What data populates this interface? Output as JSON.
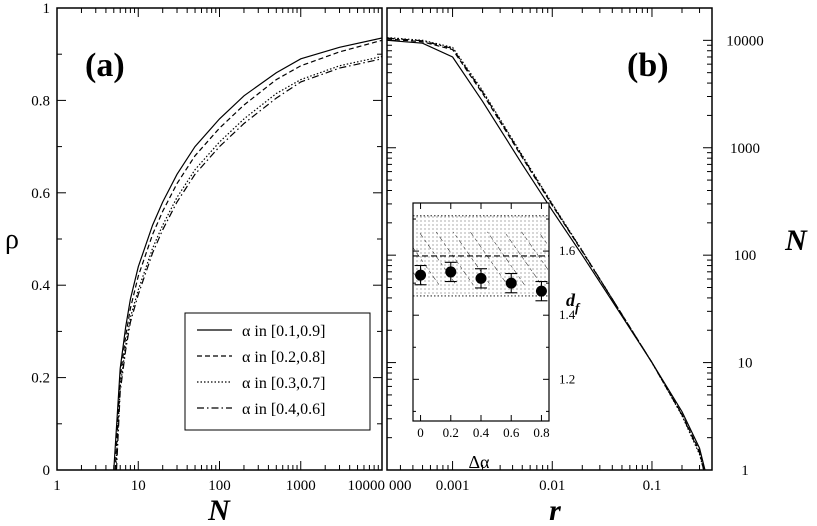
{
  "chart_data": [
    {
      "panel_label": "(a)",
      "type": "line",
      "xlabel": "N",
      "ylabel": "ρ",
      "xscale": "log",
      "xlim": [
        1,
        10000
      ],
      "ylim": [
        0,
        1
      ],
      "x_ticks": [
        "1",
        "10",
        "100",
        "1000",
        "10000"
      ],
      "y_ticks": [
        "0",
        "0.2",
        "0.4",
        "0.6",
        "0.8",
        "1"
      ],
      "grid": false,
      "legend_position": "bottom-right",
      "series": [
        {
          "name": "α in [0.1,0.9]",
          "style": "solid",
          "x": [
            5,
            6,
            7,
            8,
            10,
            15,
            20,
            30,
            50,
            100,
            200,
            500,
            1000,
            3000,
            10000
          ],
          "y": [
            0,
            0.22,
            0.31,
            0.37,
            0.44,
            0.53,
            0.58,
            0.64,
            0.7,
            0.76,
            0.81,
            0.86,
            0.89,
            0.915,
            0.935
          ]
        },
        {
          "name": "α in [0.2,0.8]",
          "style": "dashed",
          "x": [
            5.2,
            6,
            7,
            8,
            10,
            15,
            20,
            30,
            50,
            100,
            200,
            500,
            1000,
            3000,
            10000
          ],
          "y": [
            0,
            0.2,
            0.29,
            0.35,
            0.42,
            0.51,
            0.56,
            0.62,
            0.68,
            0.74,
            0.79,
            0.845,
            0.875,
            0.905,
            0.93
          ]
        },
        {
          "name": "α in [0.3,0.7]",
          "style": "dotted",
          "x": [
            5.3,
            6,
            7,
            8,
            10,
            15,
            20,
            30,
            50,
            100,
            200,
            500,
            1000,
            3000,
            10000
          ],
          "y": [
            0,
            0.18,
            0.27,
            0.33,
            0.39,
            0.48,
            0.53,
            0.59,
            0.65,
            0.71,
            0.76,
            0.815,
            0.845,
            0.875,
            0.895
          ]
        },
        {
          "name": "α in [0.4,0.6]",
          "style": "dashdot",
          "x": [
            5.4,
            6,
            7,
            8,
            10,
            15,
            20,
            30,
            50,
            100,
            200,
            500,
            1000,
            3000,
            10000
          ],
          "y": [
            0,
            0.17,
            0.26,
            0.32,
            0.38,
            0.47,
            0.52,
            0.58,
            0.64,
            0.7,
            0.75,
            0.805,
            0.84,
            0.87,
            0.89
          ]
        }
      ]
    },
    {
      "panel_label": "(b)",
      "type": "line",
      "xlabel": "r",
      "ylabel": "N",
      "xscale": "log",
      "yscale": "log",
      "xlim": [
        0.00022,
        0.4
      ],
      "ylim": [
        1,
        20000
      ],
      "x_ticks": [
        "0.001",
        "0.01",
        "0.1"
      ],
      "x_tick_edge": "000",
      "y_ticks": [
        "1",
        "10",
        "100",
        "1000",
        "10000"
      ],
      "grid": false,
      "series": [
        {
          "style": "solid",
          "x": [
            0.00022,
            0.0005,
            0.001,
            0.002,
            0.005,
            0.01,
            0.02,
            0.05,
            0.1,
            0.2,
            0.3,
            0.34
          ],
          "y": [
            10000,
            9400,
            7000,
            2700,
            700,
            260,
            100,
            27,
            10,
            3.5,
            1.6,
            1
          ]
        },
        {
          "style": "dashed",
          "x": [
            0.00022,
            0.0005,
            0.001,
            0.002,
            0.005,
            0.01,
            0.02,
            0.05,
            0.1,
            0.2,
            0.3,
            0.335
          ],
          "y": [
            10300,
            9700,
            8200,
            3200,
            810,
            290,
            108,
            28,
            10,
            3.3,
            1.5,
            1
          ]
        },
        {
          "style": "dotted",
          "x": [
            0.00022,
            0.0005,
            0.001,
            0.002,
            0.005,
            0.01,
            0.02,
            0.05,
            0.1,
            0.2,
            0.3,
            0.33
          ],
          "y": [
            10600,
            10000,
            8600,
            3400,
            850,
            300,
            110,
            28,
            10,
            3.2,
            1.4,
            1
          ]
        },
        {
          "style": "dashdot",
          "x": [
            0.00022,
            0.0005,
            0.001,
            0.002,
            0.005,
            0.01,
            0.02,
            0.05,
            0.1,
            0.2,
            0.3,
            0.33
          ],
          "y": [
            10500,
            9900,
            8400,
            3300,
            830,
            295,
            109,
            28,
            10,
            3.25,
            1.45,
            1
          ]
        }
      ],
      "inset": {
        "type": "scatter",
        "xlabel": "Δα",
        "ylabel": "d_f",
        "ylabel_main": "d",
        "ylabel_sub": "f",
        "xlim": [
          -0.05,
          0.85
        ],
        "ylim": [
          1.07,
          1.75
        ],
        "x_ticks": [
          "0",
          "0.2",
          "0.4",
          "0.6",
          "0.8"
        ],
        "y_ticks": [
          "1.2",
          "1.4",
          "1.6"
        ],
        "points": {
          "x": [
            0,
            0.2,
            0.4,
            0.6,
            0.8
          ],
          "y": [
            1.525,
            1.535,
            1.515,
            1.5,
            1.475
          ],
          "err": [
            0.03,
            0.03,
            0.03,
            0.03,
            0.03
          ]
        },
        "reference_band": {
          "center": 1.585,
          "upper": 1.71,
          "lower": 1.46,
          "hatch_upper": 1.66,
          "hatch_lower": 1.495
        }
      }
    }
  ]
}
